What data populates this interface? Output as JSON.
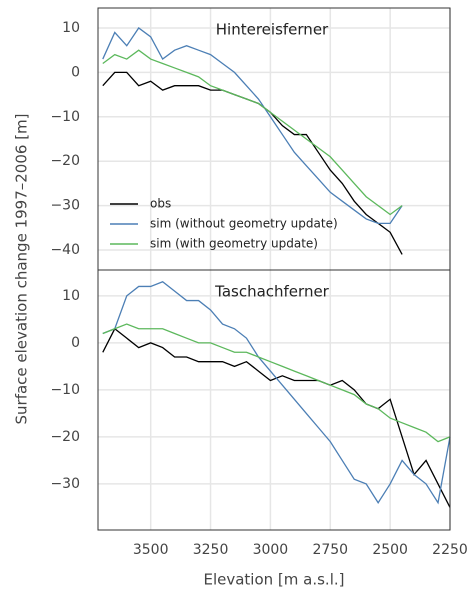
{
  "chart_data": [
    {
      "type": "line",
      "title": "Hintereisferner",
      "ylabel": "Surface elevation change 1997–2006 [m]",
      "x": [
        3700,
        3650,
        3600,
        3550,
        3500,
        3450,
        3400,
        3350,
        3300,
        3250,
        3200,
        3150,
        3100,
        3050,
        3000,
        2950,
        2900,
        2850,
        2800,
        2750,
        2700,
        2650,
        2600,
        2550,
        2500,
        2450
      ],
      "series": [
        {
          "name": "obs",
          "color": "#000000",
          "values": [
            -3,
            0,
            0,
            -3,
            -2,
            -4,
            -3,
            -3,
            -3,
            -4,
            -4,
            -5,
            -6,
            -7,
            -9,
            -12,
            -14,
            -14,
            -18,
            -22,
            -25,
            -29,
            -32,
            -34,
            -36,
            -41
          ]
        },
        {
          "name": "sim (without geometry update)",
          "color": "#4c7fb5",
          "values": [
            3,
            9,
            6,
            10,
            8,
            3,
            5,
            6,
            5,
            4,
            2,
            0,
            -3,
            -6,
            -10,
            -14,
            -18,
            -21,
            -24,
            -27,
            -29,
            -31,
            -33,
            -34,
            -34,
            -30
          ]
        },
        {
          "name": "sim (with geometry update)",
          "color": "#5cb85c",
          "values": [
            2,
            4,
            3,
            5,
            3,
            2,
            1,
            0,
            -1,
            -3,
            -4,
            -5,
            -6,
            -7,
            -9,
            -11,
            -13,
            -15,
            -17,
            -19,
            -22,
            -25,
            -28,
            -30,
            -32,
            -30
          ]
        }
      ],
      "xlim": [
        3720,
        2250
      ],
      "xticks": [
        3500,
        3250,
        3000,
        2750,
        2500,
        2250
      ],
      "ylim": [
        -44.5,
        14.5
      ],
      "yticks": [
        10,
        0,
        {
          "value": -10,
          "label": "−10"
        },
        {
          "value": -20,
          "label": "−20"
        },
        {
          "value": -30,
          "label": "−30"
        },
        {
          "value": -40,
          "label": "−40"
        }
      ],
      "grid": true,
      "legend": "lower left"
    },
    {
      "type": "line",
      "title": "Taschachferner",
      "xlabel": "Elevation [m a.s.l.]",
      "x": [
        3700,
        3650,
        3600,
        3550,
        3500,
        3450,
        3400,
        3350,
        3300,
        3250,
        3200,
        3150,
        3100,
        3050,
        3000,
        2950,
        2900,
        2850,
        2800,
        2750,
        2700,
        2650,
        2600,
        2550,
        2500,
        2450,
        2400,
        2350,
        2300,
        2250
      ],
      "series": [
        {
          "color": "#000000",
          "values": [
            -2,
            3,
            1,
            -1,
            0,
            -1,
            -3,
            -3,
            -4,
            -4,
            -4,
            -5,
            -4,
            -6,
            -8,
            -7,
            -8,
            -8,
            -8,
            -9,
            -8,
            -10,
            -13,
            -14,
            -12,
            -20,
            -28,
            -25,
            -30,
            -35
          ]
        },
        {
          "color": "#4c7fb5",
          "values": [
            2,
            3,
            10,
            12,
            12,
            13,
            11,
            9,
            9,
            7,
            4,
            3,
            1,
            -3,
            -6,
            -9,
            -12,
            -15,
            -18,
            -21,
            -25,
            -29,
            -30,
            -34,
            -30,
            -25,
            -28,
            -30,
            -34,
            -20
          ]
        },
        {
          "color": "#5cb85c",
          "values": [
            2,
            3,
            4,
            3,
            3,
            3,
            2,
            1,
            0,
            0,
            -1,
            -2,
            -2,
            -3,
            -4,
            -5,
            -6,
            -7,
            -8,
            -9,
            -10,
            -11,
            -13,
            -14,
            -16,
            -17,
            -18,
            -19,
            -21,
            -20
          ]
        }
      ],
      "xlim": [
        3720,
        2250
      ],
      "xticks": [
        3500,
        3250,
        3000,
        2750,
        2500,
        2250
      ],
      "ylim": [
        -39.8,
        15.5
      ],
      "yticks": [
        10,
        0,
        {
          "value": -10,
          "label": "−10"
        },
        {
          "value": -20,
          "label": "−20"
        },
        {
          "value": -30,
          "label": "−30"
        }
      ],
      "grid": true
    }
  ]
}
